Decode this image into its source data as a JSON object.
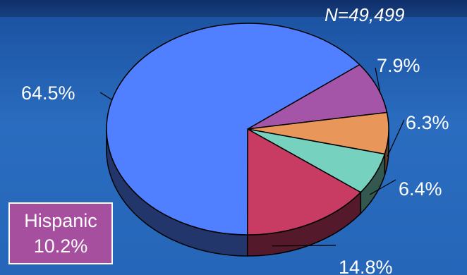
{
  "chart_data": {
    "type": "pie",
    "n_label": "N=49,499",
    "slices": [
      {
        "label": "64.5%",
        "value": 64.5,
        "color": "#5080ff"
      },
      {
        "label": "7.9%",
        "value": 7.9,
        "color": "#a455a8"
      },
      {
        "label": "6.3%",
        "value": 6.3,
        "color": "#e8965a"
      },
      {
        "label": "6.4%",
        "value": 6.4,
        "color": "#76d1be"
      },
      {
        "label": "14.8%",
        "value": 14.8,
        "color": "#c83c64"
      }
    ],
    "callout": {
      "name": "Hispanic",
      "value_label": "10.2%",
      "color": "#a54f9e"
    }
  }
}
